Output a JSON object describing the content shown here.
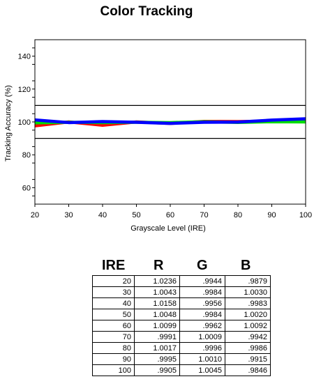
{
  "chart_data": {
    "type": "line",
    "title": "Color Tracking",
    "xlabel": "Grayscale Level (IRE)",
    "ylabel": "Tracking Accuracy (%)",
    "xlim": [
      20,
      100
    ],
    "ylim": [
      50,
      150
    ],
    "x": [
      20,
      30,
      40,
      50,
      60,
      70,
      80,
      90,
      100
    ],
    "x_ticks": [
      20,
      30,
      40,
      50,
      60,
      70,
      80,
      90,
      100
    ],
    "y_ticks": [
      60,
      80,
      100,
      120,
      140
    ],
    "reference_lines": [
      110,
      90
    ],
    "grid": false,
    "series": [
      {
        "color": "#ff0000",
        "values": [
          97.6,
          100.0,
          98.0,
          100.0,
          99.1,
          100.3,
          100.2,
          100.5,
          100.6
        ]
      },
      {
        "color": "#00dd00",
        "values": [
          99.4,
          99.8,
          99.6,
          99.8,
          99.6,
          100.1,
          99.7,
          100.1,
          100.0
        ]
      },
      {
        "color": "#0000ff",
        "values": [
          101.2,
          99.6,
          100.2,
          99.8,
          99.1,
          99.8,
          99.9,
          101.1,
          101.9
        ]
      }
    ]
  },
  "table": {
    "headers": [
      "IRE",
      "R",
      "G",
      "B"
    ],
    "rows": [
      [
        "20",
        "1.0236",
        ".9944",
        ".9879"
      ],
      [
        "30",
        "1.0043",
        ".9984",
        "1.0030"
      ],
      [
        "40",
        "1.0158",
        ".9956",
        ".9983"
      ],
      [
        "50",
        "1.0048",
        ".9984",
        "1.0020"
      ],
      [
        "60",
        "1.0099",
        ".9962",
        "1.0092"
      ],
      [
        "70",
        ".9991",
        "1.0009",
        ".9942"
      ],
      [
        "80",
        "1.0017",
        ".9996",
        ".9986"
      ],
      [
        "90",
        ".9995",
        "1.0010",
        ".9915"
      ],
      [
        "100",
        ".9905",
        "1.0045",
        ".9846"
      ]
    ]
  }
}
